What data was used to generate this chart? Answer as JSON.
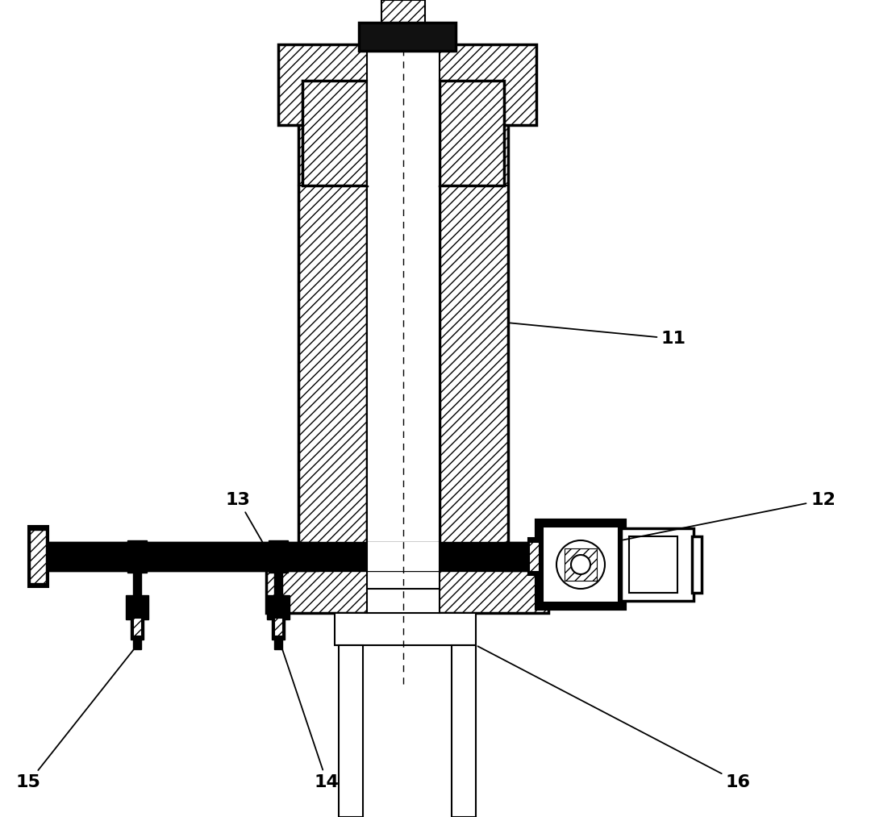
{
  "bg_color": "#ffffff",
  "figsize": [
    11.11,
    10.13
  ],
  "dpi": 100,
  "label_fontsize": 16
}
